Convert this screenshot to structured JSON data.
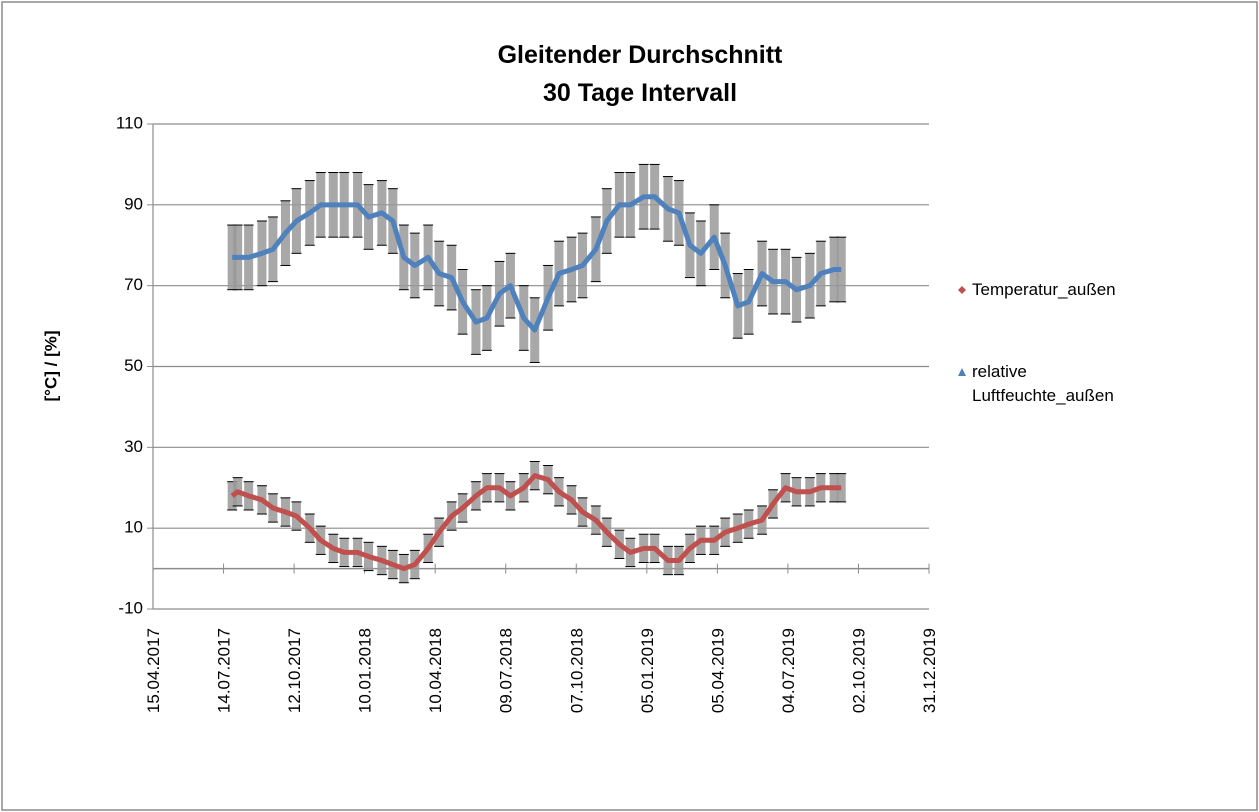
{
  "chart_data": {
    "type": "line",
    "title": "Gleitender Durchschnitt\n30 Tage Intervall",
    "y_label": "[°C] / [%]",
    "x": [
      "25.07.2017",
      "01.08.2017",
      "15.08.2017",
      "01.09.2017",
      "15.09.2017",
      "01.10.2017",
      "15.10.2017",
      "01.11.2017",
      "15.11.2017",
      "01.12.2017",
      "15.12.2017",
      "01.01.2018",
      "15.01.2018",
      "01.02.2018",
      "15.02.2018",
      "01.03.2018",
      "15.03.2018",
      "01.04.2018",
      "15.04.2018",
      "01.05.2018",
      "15.05.2018",
      "01.06.2018",
      "15.06.2018",
      "01.07.2018",
      "15.07.2018",
      "01.08.2018",
      "15.08.2018",
      "01.09.2018",
      "15.09.2018",
      "01.10.2018",
      "15.10.2018",
      "01.11.2018",
      "15.11.2018",
      "01.12.2018",
      "15.12.2018",
      "01.01.2019",
      "15.01.2019",
      "01.02.2019",
      "15.02.2019",
      "01.03.2019",
      "15.03.2019",
      "01.04.2019",
      "15.04.2019",
      "01.05.2019",
      "15.05.2019",
      "01.06.2019",
      "15.06.2019",
      "01.07.2019",
      "15.07.2019",
      "01.08.2019",
      "15.08.2019",
      "01.09.2019",
      "10.09.2019"
    ],
    "series": [
      {
        "name": "Temperatur_außen",
        "color": "#c0504d",
        "marker": "diamond",
        "error": 3.5,
        "values": [
          18,
          19,
          18,
          17,
          15,
          14,
          13,
          10,
          7,
          5,
          4,
          4,
          3,
          2,
          1,
          0,
          1,
          5,
          9,
          13,
          15,
          18,
          20,
          20,
          18,
          20,
          23,
          22,
          19,
          17,
          14,
          12,
          9,
          6,
          4,
          5,
          5,
          2,
          2,
          5,
          7,
          7,
          9,
          10,
          11,
          12,
          16,
          20,
          19,
          19,
          20,
          20,
          20
        ]
      },
      {
        "name": "relative Luftfeuchte_außen",
        "color": "#4f81bd",
        "marker": "triangle",
        "error": 8,
        "values": [
          77,
          77,
          77,
          78,
          79,
          83,
          86,
          88,
          90,
          90,
          90,
          90,
          87,
          88,
          86,
          77,
          75,
          77,
          73,
          72,
          66,
          61,
          62,
          68,
          70,
          62,
          59,
          67,
          73,
          74,
          75,
          79,
          86,
          90,
          90,
          92,
          92,
          89,
          88,
          80,
          78,
          82,
          75,
          65,
          66,
          73,
          71,
          71,
          69,
          70,
          73,
          74,
          74
        ]
      }
    ],
    "xlim": [
      "15.04.2017",
      "31.12.2019"
    ],
    "xticks": [
      "15.04.2017",
      "14.07.2017",
      "12.10.2017",
      "10.01.2018",
      "10.04.2018",
      "09.07.2018",
      "07.10.2018",
      "05.01.2019",
      "05.04.2019",
      "04.07.2019",
      "02.10.2019",
      "31.12.2019"
    ],
    "ylim": [
      -10,
      110
    ],
    "yticks": [
      -10,
      10,
      30,
      50,
      70,
      90,
      110
    ],
    "grid": true,
    "legend": "right"
  }
}
